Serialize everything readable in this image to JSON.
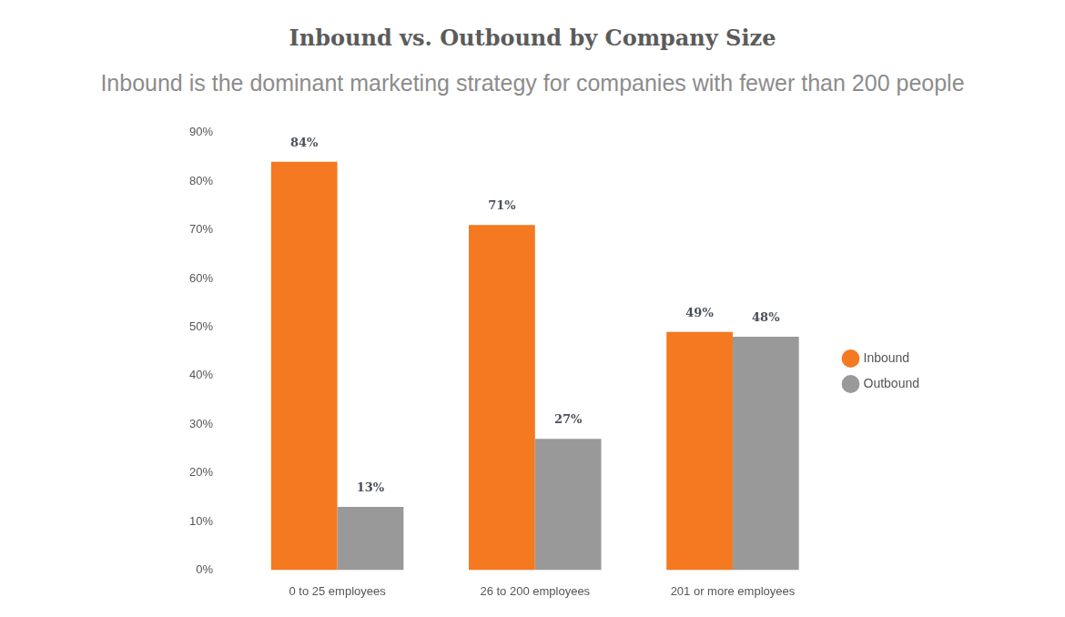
{
  "chart_data": {
    "type": "bar",
    "title": "Inbound vs. Outbound by Company Size",
    "subtitle": "Inbound is the dominant marketing strategy for companies with fewer than 200 people",
    "categories": [
      "0 to 25 employees",
      "26 to 200 employees",
      "201 or more employees"
    ],
    "series": [
      {
        "name": "Inbound",
        "color": "#f47920",
        "values": [
          84,
          71,
          49
        ],
        "value_labels": [
          "84%",
          "71%",
          "49%"
        ]
      },
      {
        "name": "Outbound",
        "color": "#999999",
        "values": [
          13,
          27,
          48
        ],
        "value_labels": [
          "13%",
          "27%",
          "48%"
        ]
      }
    ],
    "ylim": [
      0,
      90
    ],
    "yticks": [
      {
        "value": 0,
        "label": "0%"
      },
      {
        "value": 10,
        "label": "10%"
      },
      {
        "value": 20,
        "label": "20%"
      },
      {
        "value": 30,
        "label": "30%"
      },
      {
        "value": 40,
        "label": "40%"
      },
      {
        "value": 50,
        "label": "50%"
      },
      {
        "value": 60,
        "label": "60%"
      },
      {
        "value": 70,
        "label": "70%"
      },
      {
        "value": 80,
        "label": "80%"
      },
      {
        "value": 90,
        "label": "90%"
      }
    ],
    "grid": false,
    "legend": "right",
    "data_labels": true
  }
}
